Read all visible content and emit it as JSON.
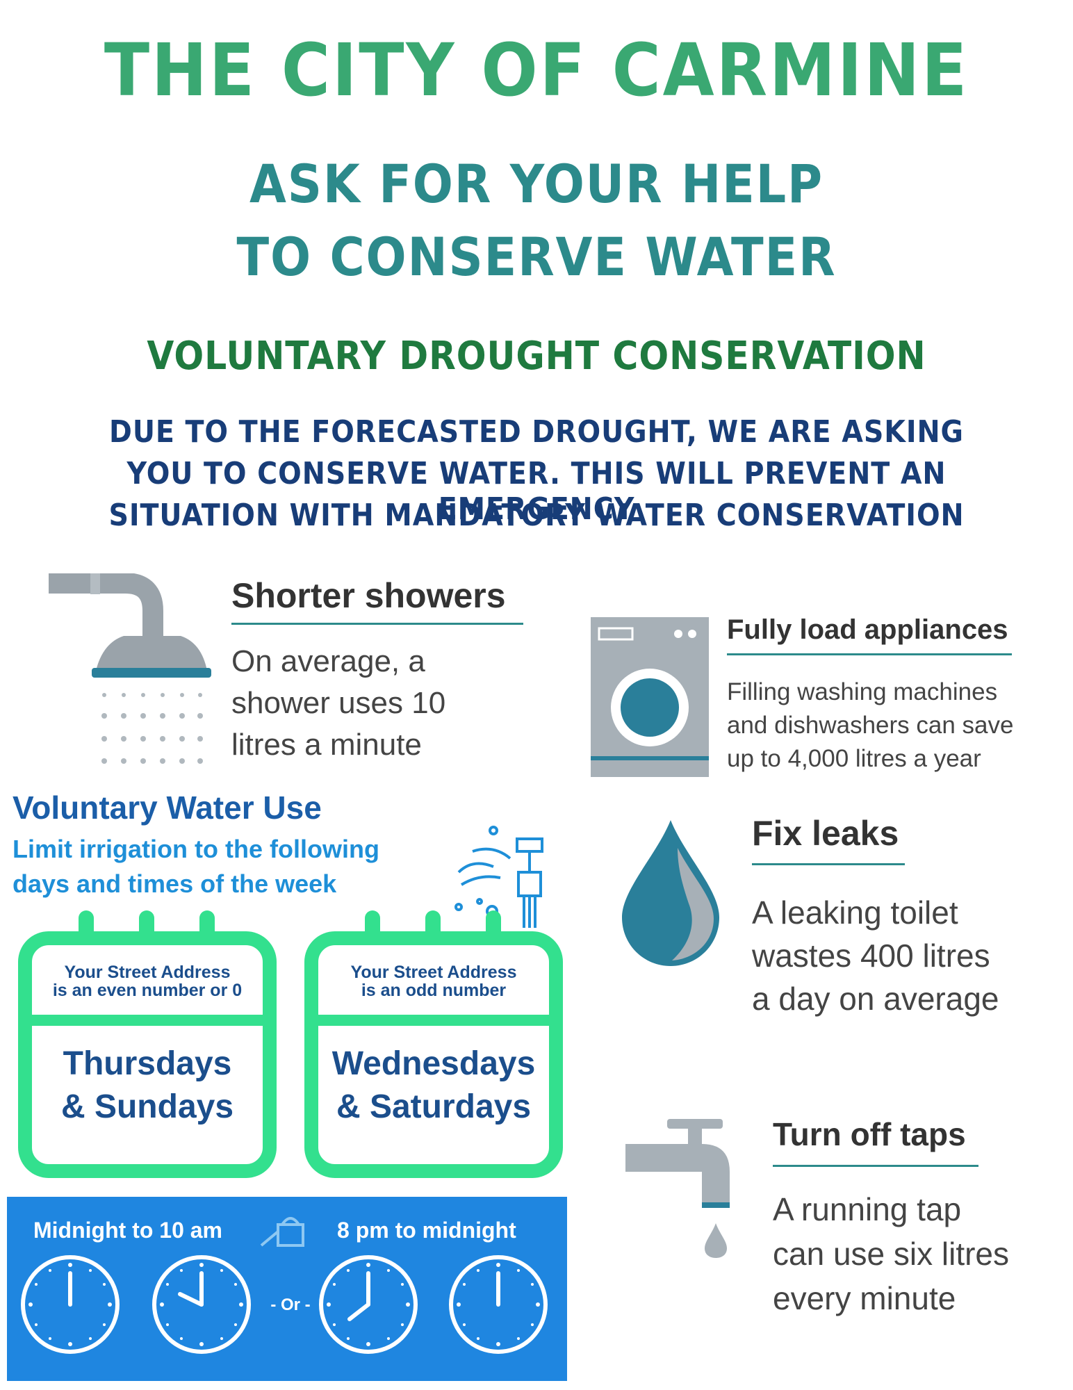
{
  "header": {
    "title": "THE CITY OF CARMINE",
    "subtitle_line1": "ASK FOR YOUR HELP",
    "subtitle_line2": "TO CONSERVE WATER",
    "section_title": "VOLUNTARY DROUGHT CONSERVATION",
    "notice_line1": "DUE TO THE FORECASTED DROUGHT, WE ARE ASKING",
    "notice_line2": "YOU TO CONSERVE WATER. THIS WILL PREVENT AN EMERGENCY",
    "notice_line3": "SITUATION WITH MANDATORY WATER CONSERVATION"
  },
  "tips": {
    "showers": {
      "title": "Shorter showers",
      "line1": "On average, a",
      "line2": "shower uses 10",
      "line3": "litres a minute",
      "icon": "shower-icon"
    },
    "appliances": {
      "title": "Fully load appliances",
      "line1": "Filling washing machines",
      "line2": "and dishwashers can save",
      "line3": "up to 4,000 litres a year",
      "icon": "washing-machine-icon"
    },
    "leaks": {
      "title": "Fix leaks",
      "line1": "A leaking toilet",
      "line2": "wastes 400 litres",
      "line3": "a day on average",
      "icon": "water-drop-icon"
    },
    "taps": {
      "title": "Turn off taps",
      "line1": "A running tap",
      "line2": "can use six litres",
      "line3": "every minute",
      "icon": "tap-icon"
    }
  },
  "voluntary": {
    "title": "Voluntary Water Use",
    "sub_line1": "Limit irrigation to the following",
    "sub_line2": "days and times of the week",
    "calendars": [
      {
        "head_line1": "Your Street Address",
        "head_line2": "is an even number or 0",
        "days_line1": "Thursdays",
        "days_line2": "& Sundays"
      },
      {
        "head_line1": "Your Street Address",
        "head_line2": "is an odd number",
        "days_line1": "Wednesdays",
        "days_line2": "& Saturdays"
      }
    ],
    "times": {
      "left_label": "Midnight to 10 am",
      "right_label": "8 pm to midnight",
      "or_label": "- Or -"
    }
  },
  "colors": {
    "title_green": "#3aa872",
    "subtitle_teal": "#2c8a8b",
    "section_green": "#1f7a3f",
    "notice_navy": "#183d78",
    "calendar_green": "#33e08e",
    "time_bar_blue": "#1f86e0"
  }
}
